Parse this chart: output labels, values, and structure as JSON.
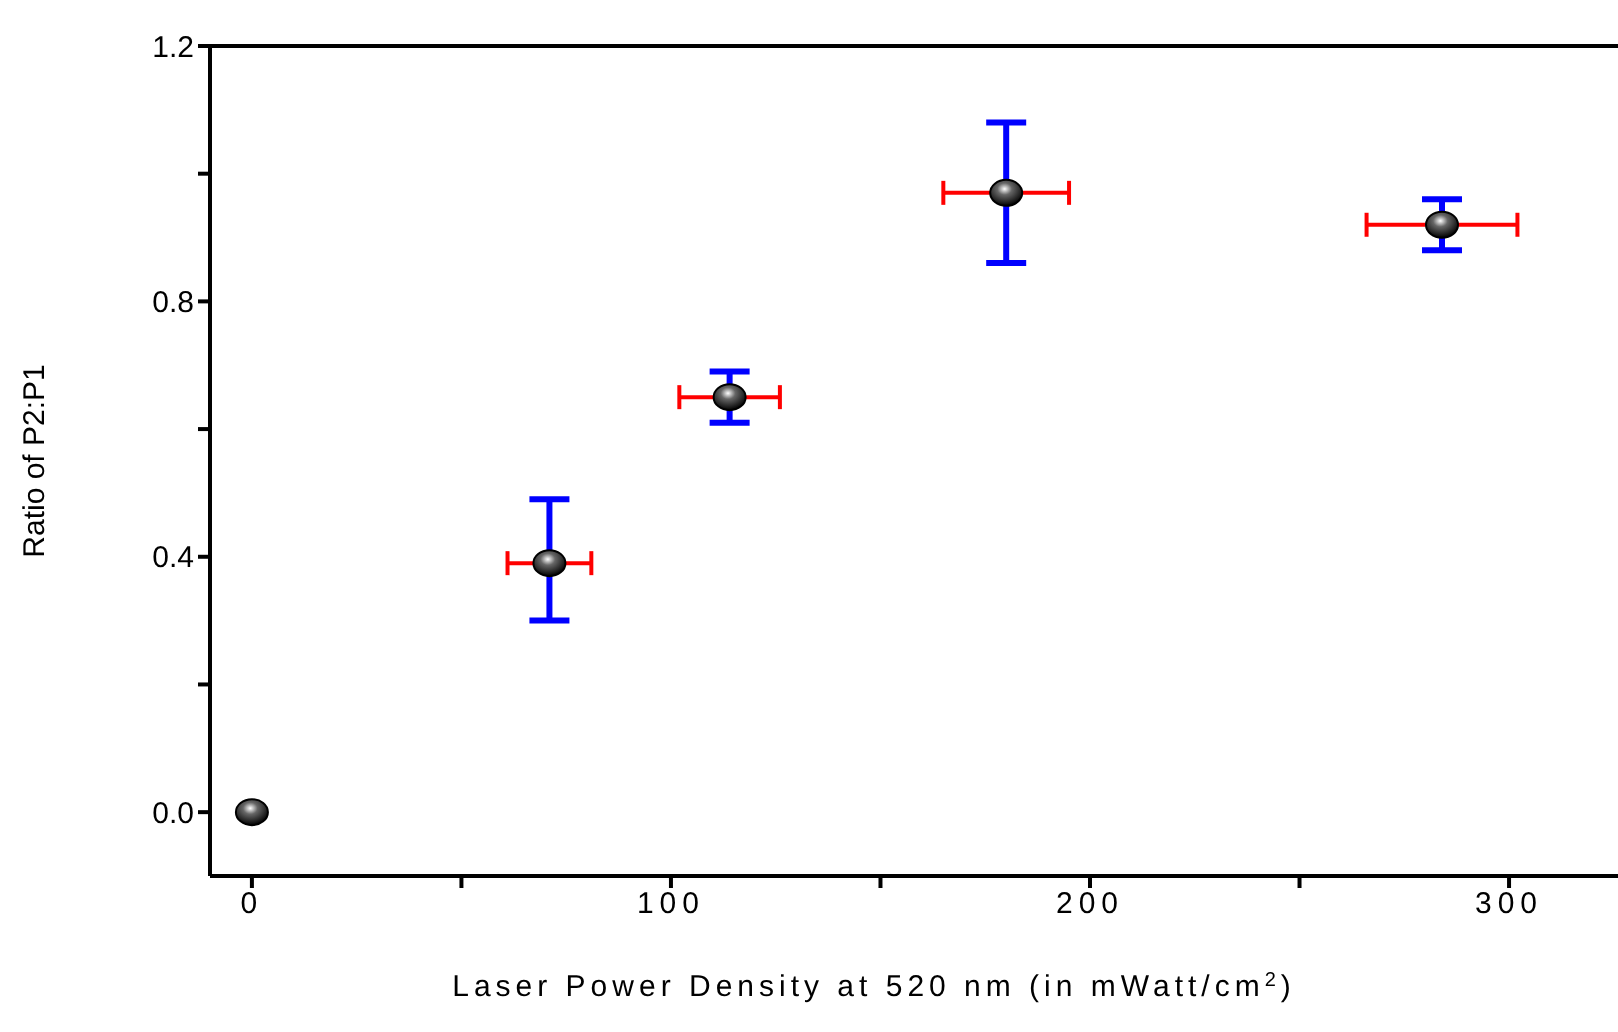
{
  "chart_data": {
    "type": "scatter",
    "xlabel": "Laser Power Density at 520 nm (in mWatt/cm$^{2}$)",
    "ylabel": "Ratio of P2:P1",
    "x": [
      0,
      71,
      114,
      180,
      284
    ],
    "series": [
      {
        "color": "#000000",
        "values": [
          0,
          0.39,
          0.65,
          0.97,
          0.92
        ],
        "errors": [
          null,
          [
            0.3,
            0.49
          ],
          [
            0.61,
            0.69
          ],
          [
            0.86,
            1.08
          ],
          [
            0.88,
            0.96
          ]
        ],
        "xerrors": [
          null,
          [
            61,
            81
          ],
          [
            102,
            126
          ],
          [
            165,
            195
          ],
          [
            266,
            302
          ]
        ]
      }
    ],
    "xlim": [
      -10,
      326
    ],
    "xticks": [
      0,
      {
        "value": 50,
        "label": null
      },
      100,
      {
        "value": 150,
        "label": null
      },
      200,
      {
        "value": 250,
        "label": null
      },
      300
    ],
    "ylim": [
      -0.1,
      1.2
    ],
    "yticks": [
      {
        "value": 0,
        "label": "0.0"
      },
      {
        "value": 0.2,
        "label": null
      },
      {
        "value": 0.4,
        "label": "0.4"
      },
      {
        "value": 0.6,
        "label": null
      },
      {
        "value": 0.8,
        "label": "0.8"
      },
      {
        "value": 1.0,
        "label": null
      },
      {
        "value": 1.2,
        "label": "1.2"
      }
    ],
    "marker": "circle",
    "grid": false,
    "legend": false
  }
}
